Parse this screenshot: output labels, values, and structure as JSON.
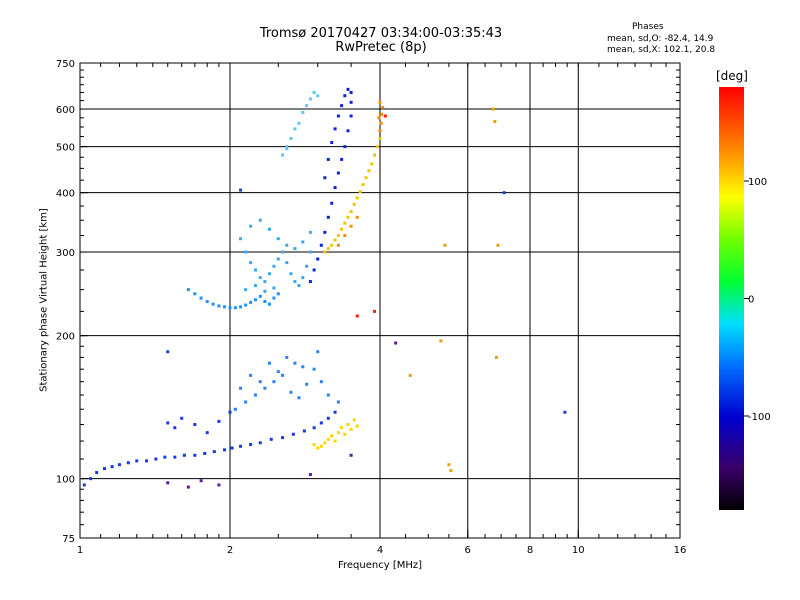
{
  "chart_data": {
    "type": "scatter",
    "title": "Tromsø 20170427 03:34:00-03:35:43",
    "subtitle": "RwPretec (8p)",
    "phase_stats": {
      "heading": "Phases",
      "o_line": "mean, sd,O: -82.4, 14.9",
      "x_line": "mean, sd,X: 102.1, 20.8"
    },
    "xlabel": "Frequency [MHz]",
    "ylabel": "Stationary phase Virtual Height [km]",
    "x_scale": "log",
    "y_scale": "log",
    "xlim": [
      1,
      16
    ],
    "ylim": [
      75,
      750
    ],
    "x_ticks": [
      1,
      2,
      4,
      6,
      8,
      10,
      16
    ],
    "x_tick_labels": [
      "1",
      "2",
      "4",
      "6",
      "8",
      "10",
      "16"
    ],
    "y_ticks": [
      75,
      100,
      200,
      300,
      400,
      500,
      600,
      750
    ],
    "y_tick_labels": [
      "75",
      "100",
      "200",
      "300",
      "400",
      "500",
      "600",
      "750"
    ],
    "grid": true,
    "colorbar": {
      "label": "[deg]",
      "range": [
        -180,
        180
      ],
      "ticks": [
        100,
        0,
        -100
      ],
      "tick_labels": [
        "100",
        "0",
        "-100"
      ]
    },
    "series": [
      {
        "name": "",
        "color": "#1838e8",
        "phase": -100,
        "x": [
          1.02,
          1.05,
          1.08,
          1.12,
          1.16,
          1.2,
          1.25,
          1.3,
          1.36,
          1.42,
          1.48,
          1.55,
          1.62,
          1.7,
          1.78,
          1.86,
          1.95,
          2.02,
          2.1,
          2.2,
          2.3,
          2.42,
          2.55,
          2.68,
          2.82,
          2.95,
          3.05,
          3.15,
          3.25,
          1.5,
          1.55,
          1.6,
          1.7,
          1.8,
          1.9,
          2.0
        ],
        "y": [
          97,
          100,
          103,
          105,
          106,
          107,
          108,
          109,
          109,
          110,
          111,
          111,
          112,
          112,
          113,
          114,
          115,
          116,
          117,
          118,
          119,
          121,
          122,
          124,
          126,
          128,
          131,
          134,
          138,
          131,
          128,
          134,
          130,
          125,
          132,
          138
        ]
      },
      {
        "name": "",
        "color": "#2f7ef5",
        "phase": -80,
        "x": [
          2.05,
          2.15,
          2.25,
          2.35,
          2.45,
          2.55,
          2.65,
          2.75,
          2.85,
          2.95,
          3.05,
          3.15,
          3.3,
          2.2,
          2.4,
          2.6,
          2.8,
          3.0,
          2.1,
          2.3,
          2.5,
          2.7
        ],
        "y": [
          140,
          145,
          150,
          155,
          160,
          165,
          152,
          148,
          158,
          170,
          160,
          150,
          145,
          165,
          175,
          180,
          172,
          185,
          155,
          160,
          168,
          175
        ]
      },
      {
        "name": "",
        "color": "#1e90ff",
        "phase": -70,
        "x": [
          1.65,
          1.7,
          1.75,
          1.8,
          1.85,
          1.9,
          1.95,
          2.0,
          2.05,
          2.1,
          2.15,
          2.2,
          2.25,
          2.3,
          2.35,
          2.4,
          2.45,
          2.5
        ],
        "y": [
          250,
          245,
          240,
          236,
          233,
          231,
          230,
          229,
          229,
          230,
          232,
          235,
          238,
          242,
          236,
          233,
          240,
          245
        ]
      },
      {
        "name": "",
        "color": "#3aa8f0",
        "phase": -60,
        "x": [
          2.1,
          2.15,
          2.2,
          2.25,
          2.3,
          2.35,
          2.4,
          2.45,
          2.5,
          2.55,
          2.6,
          2.65,
          2.7,
          2.75,
          2.8,
          2.85,
          2.9,
          2.2,
          2.3,
          2.4,
          2.5,
          2.6,
          2.7,
          2.8,
          2.9,
          2.15,
          2.25,
          2.35,
          2.45
        ],
        "y": [
          320,
          300,
          285,
          275,
          265,
          260,
          270,
          280,
          290,
          300,
          285,
          270,
          260,
          255,
          265,
          280,
          300,
          340,
          350,
          335,
          320,
          310,
          305,
          315,
          330,
          250,
          255,
          248,
          252
        ]
      },
      {
        "name": "",
        "color": "#0a24d8",
        "phase": -110,
        "x": [
          2.9,
          2.95,
          3.0,
          3.05,
          3.1,
          3.15,
          3.2,
          3.25,
          3.3,
          3.35,
          3.4,
          3.45,
          3.5,
          3.5,
          3.5,
          3.45,
          3.4,
          3.35,
          3.3,
          3.25,
          3.2,
          3.15,
          3.1
        ],
        "y": [
          260,
          275,
          290,
          310,
          330,
          355,
          380,
          410,
          440,
          470,
          500,
          540,
          580,
          620,
          650,
          660,
          640,
          610,
          580,
          545,
          510,
          470,
          430
        ]
      },
      {
        "name": "",
        "color": "#5bc8f5",
        "phase": -40,
        "x": [
          2.6,
          2.65,
          2.7,
          2.75,
          2.8,
          2.85,
          2.9,
          2.95,
          3.0,
          2.55,
          2.6
        ],
        "y": [
          500,
          520,
          545,
          560,
          590,
          610,
          630,
          650,
          640,
          480,
          495
        ]
      },
      {
        "name": "",
        "color": "#f5c400",
        "phase": 95,
        "x": [
          3.1,
          3.15,
          3.2,
          3.25,
          3.3,
          3.35,
          3.4,
          3.45,
          3.5,
          3.55,
          3.6,
          3.65,
          3.7,
          3.75,
          3.8,
          3.85,
          3.9,
          3.95,
          4.0
        ],
        "y": [
          300,
          305,
          310,
          318,
          325,
          335,
          345,
          355,
          365,
          378,
          390,
          402,
          416,
          430,
          445,
          460,
          480,
          500,
          520
        ]
      },
      {
        "name": "",
        "color": "#ff8a00",
        "phase": 140,
        "x": [
          4.0,
          4.02,
          4.03,
          4.05,
          4.0,
          3.98,
          3.3,
          3.4,
          3.5,
          3.6
        ],
        "y": [
          540,
          560,
          585,
          605,
          620,
          575,
          310,
          325,
          340,
          355
        ]
      },
      {
        "name": "",
        "color": "#ffd400",
        "phase": 105,
        "x": [
          2.95,
          3.0,
          3.05,
          3.1,
          3.15,
          3.2,
          3.25,
          3.3,
          3.35,
          3.4,
          3.45,
          3.5,
          3.55,
          3.6
        ],
        "y": [
          118,
          116,
          117,
          119,
          121,
          123,
          120,
          125,
          128,
          124,
          130,
          127,
          133,
          129
        ]
      },
      {
        "name": "",
        "color": "#e8a000",
        "phase": 120,
        "x": [
          5.5,
          5.55,
          5.4,
          6.8,
          6.9,
          6.85,
          5.3,
          4.6,
          6.75
        ],
        "y": [
          107,
          104,
          310,
          565,
          310,
          180,
          195,
          165,
          600
        ]
      },
      {
        "name": "",
        "color": "#ff2000",
        "phase": 170,
        "x": [
          3.9,
          3.6,
          4.1
        ],
        "y": [
          225,
          220,
          580
        ]
      },
      {
        "name": "",
        "color": "#5a1aa0",
        "phase": -140,
        "x": [
          1.5,
          1.65,
          1.75,
          1.9,
          2.9,
          3.5,
          4.3
        ],
        "y": [
          98,
          96,
          99,
          97,
          102,
          112,
          193
        ]
      },
      {
        "name": "",
        "color": "#1c3cd0",
        "phase": -105,
        "x": [
          9.4,
          1.5,
          2.1,
          7.1
        ],
        "y": [
          138,
          185,
          405,
          400
        ]
      }
    ]
  }
}
